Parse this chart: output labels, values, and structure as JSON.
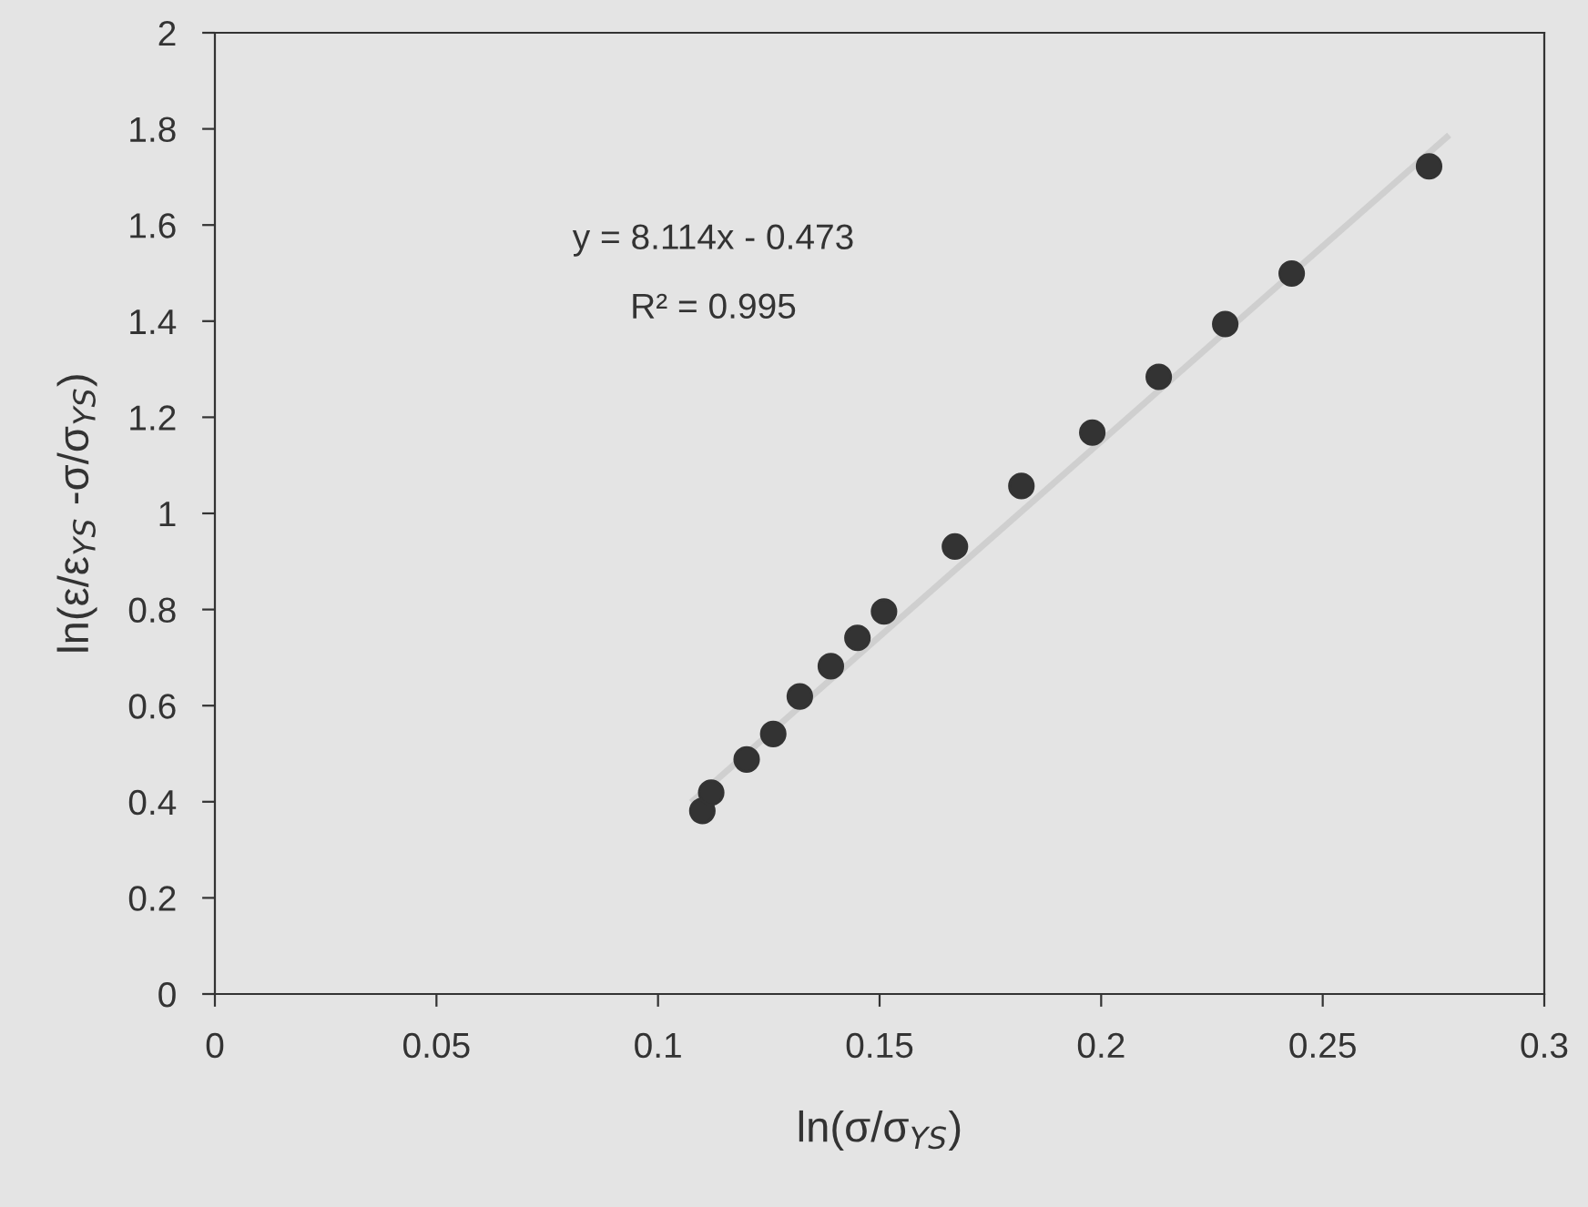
{
  "chart_data": {
    "type": "scatter",
    "xlabel": "ln(σ/σ$_{YS}$)",
    "ylabel": "ln(ε/ε$_{YS}$ -σ/σ$_{YS}$)",
    "annotations": [
      "y = 8.114x - 0.473",
      "R² = 0.995"
    ],
    "xlim": [
      0,
      0.3
    ],
    "xticks": [
      0,
      0.05,
      0.1,
      0.15,
      0.2,
      0.25,
      0.3
    ],
    "ylim": [
      0,
      2
    ],
    "yticks": [
      0,
      0.2,
      0.4,
      0.6,
      0.8,
      1,
      1.2,
      1.4,
      1.6,
      1.8,
      2
    ],
    "grid": false,
    "series": [
      {
        "type": "line",
        "color": "#cfcfcf",
        "x": [
          0.108,
          0.278
        ],
        "values": [
          0.403,
          1.783
        ]
      },
      {
        "marker": "circle",
        "color": "#333333",
        "x": [
          0.11,
          0.112,
          0.12,
          0.126,
          0.132,
          0.139,
          0.145,
          0.151,
          0.167,
          0.182,
          0.198,
          0.213,
          0.228,
          0.243,
          0.274
        ],
        "values": [
          0.381,
          0.419,
          0.488,
          0.541,
          0.619,
          0.682,
          0.741,
          0.796,
          0.931,
          1.057,
          1.168,
          1.284,
          1.394,
          1.499,
          1.722
        ]
      }
    ]
  }
}
